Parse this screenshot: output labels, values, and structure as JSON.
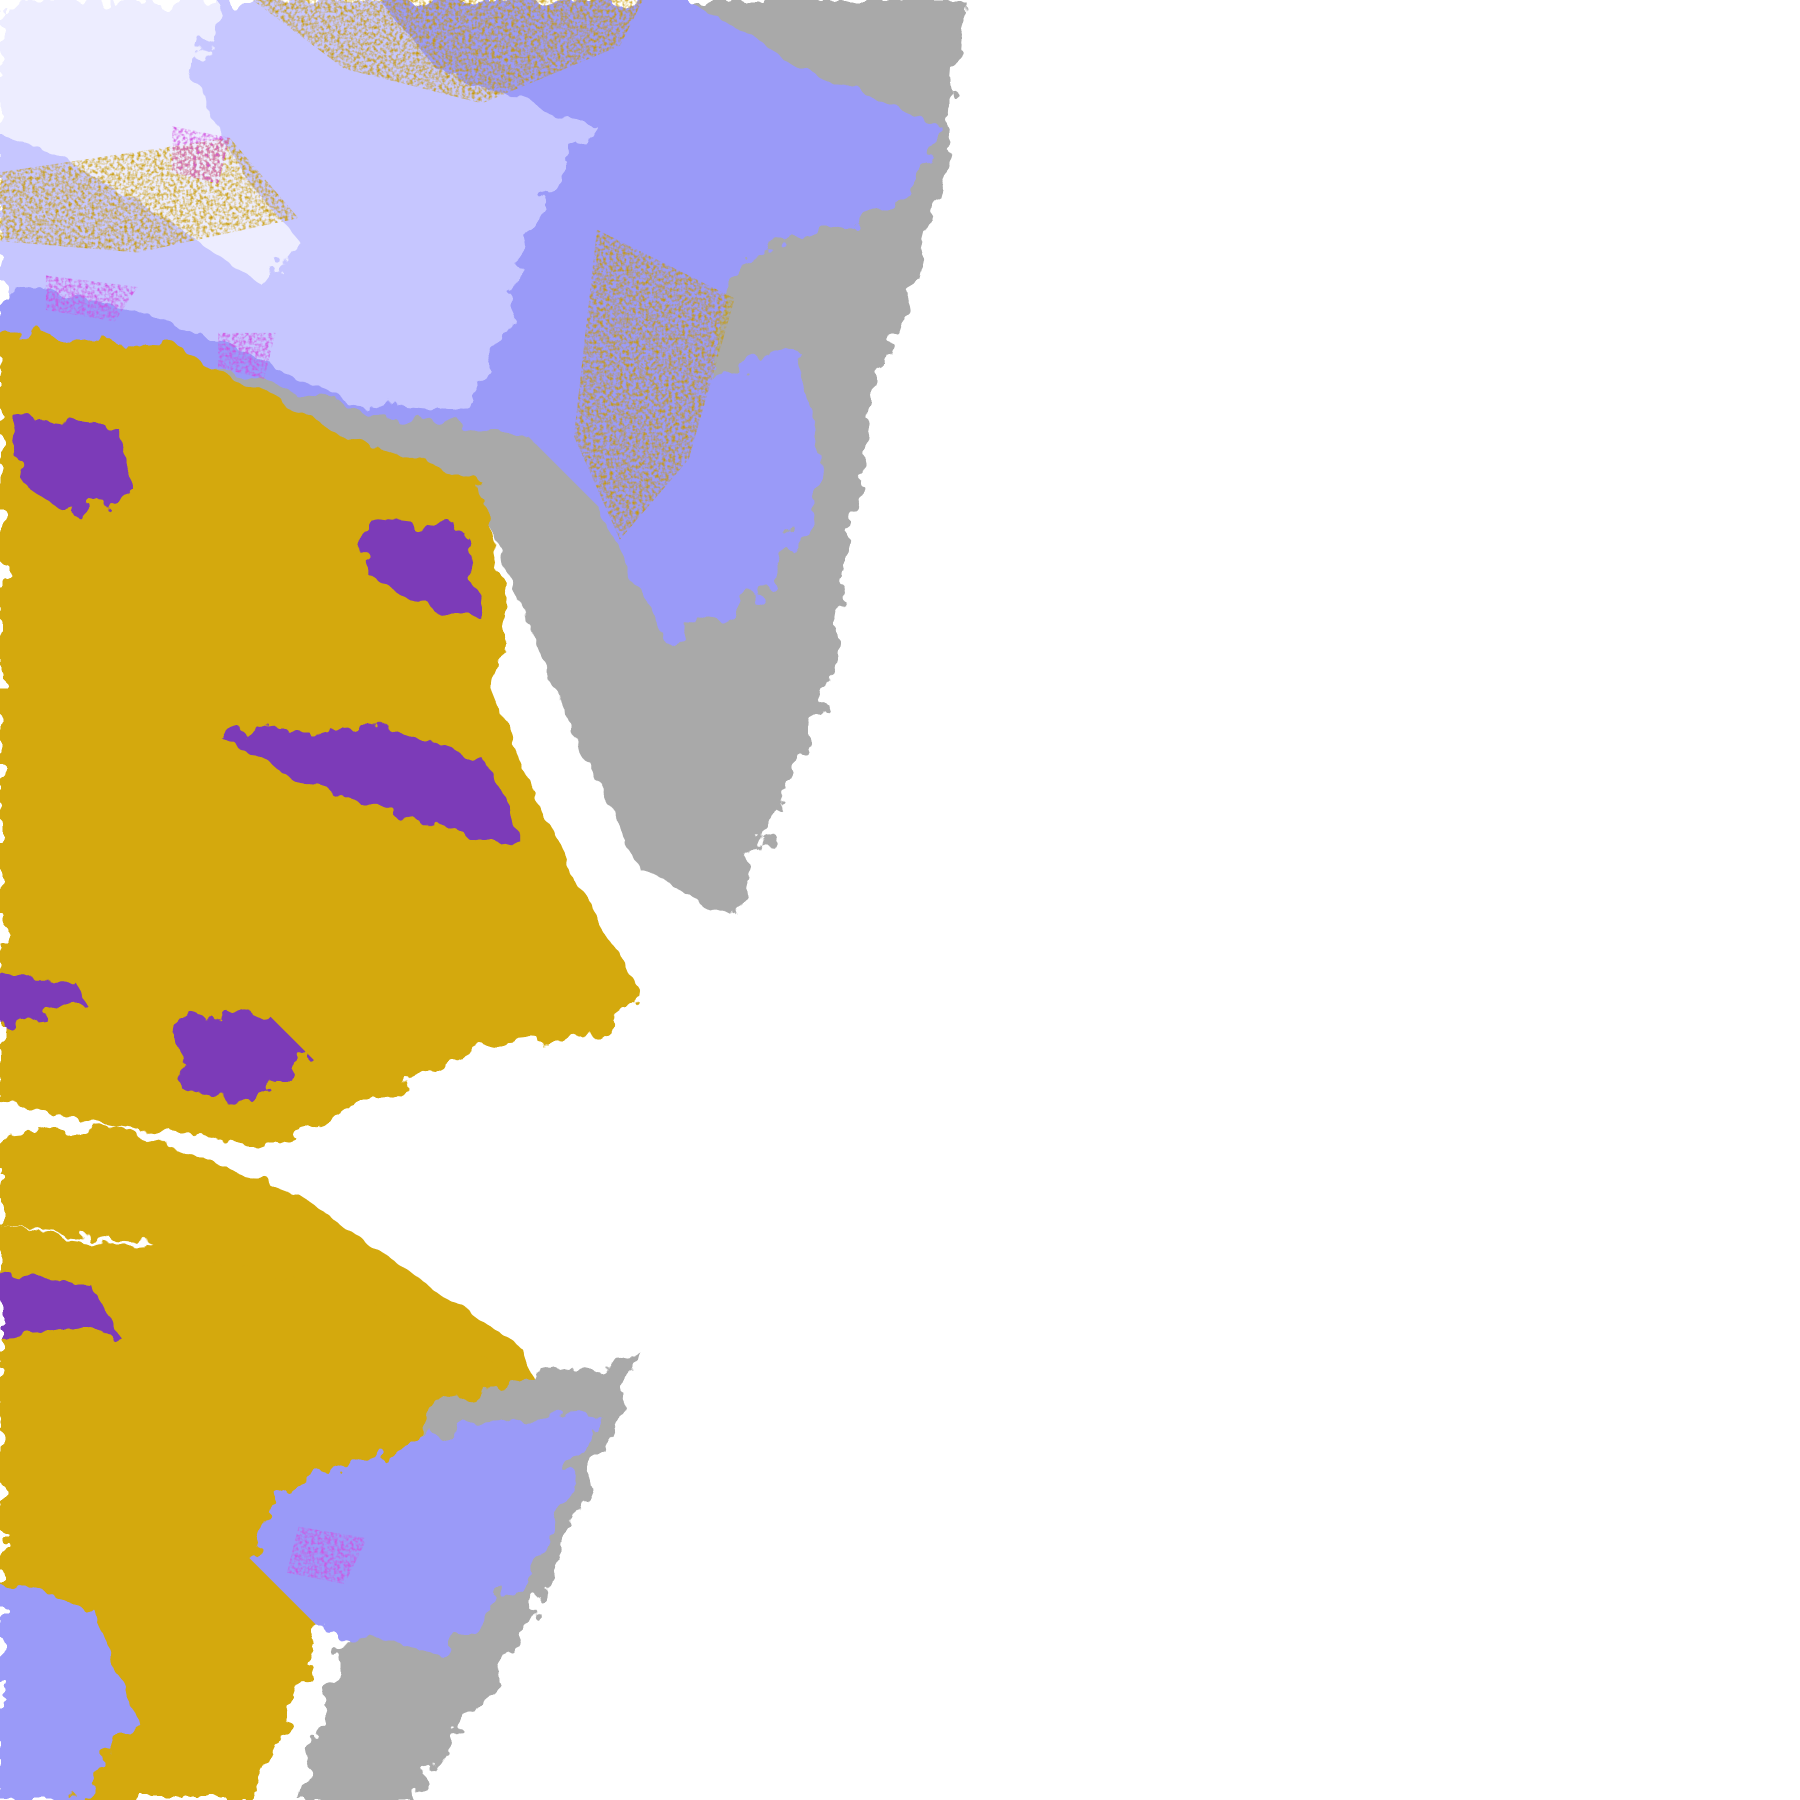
{
  "map": {
    "kind": "satellite cloud-type classification",
    "background": "#ffffff",
    "palette": {
      "gold": "#d4a90a",
      "dark_gold": "#b88a00",
      "purple": "#7b3ab8",
      "magenta": "#d24fe0",
      "lavender": "#9a9af8",
      "light_lavender": "#c6c6ff",
      "pale_lavender": "#ededff",
      "gray": "#a9a9a9"
    }
  }
}
